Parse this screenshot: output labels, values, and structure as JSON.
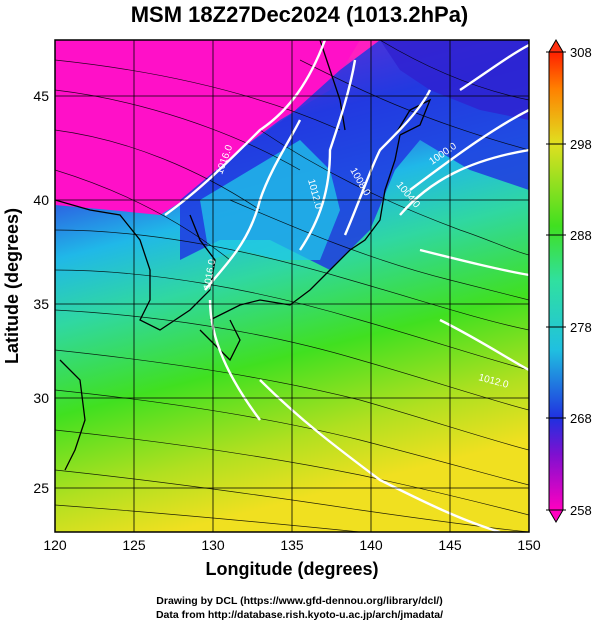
{
  "title": "MSM 18Z27Dec2024 (1013.2hPa)",
  "x_axis": {
    "label": "Longitude (degrees)",
    "ticks": [
      "120",
      "125",
      "130",
      "135",
      "140",
      "145",
      "150"
    ],
    "range": [
      120,
      150
    ]
  },
  "y_axis": {
    "label": "Latitude  (degrees)",
    "ticks": [
      "25",
      "30",
      "35",
      "40",
      "45"
    ],
    "range": [
      22.4,
      47.6
    ]
  },
  "colorbar": {
    "ticks": [
      "258",
      "268",
      "278",
      "288",
      "298",
      "308"
    ],
    "range": [
      258,
      308
    ]
  },
  "contour_labels": [
    "1016.0",
    "1012.0",
    "1008.0",
    "1004.0",
    "1000.0",
    "1012.0",
    "1016.0"
  ],
  "credits": {
    "line1": "Drawing by DCL (https://www.gfd-dennou.org/library/dcl/)",
    "line2": "Data from http://database.rish.kyoto-u.ac.jp/arch/jmadata/"
  },
  "colors": {
    "cold": "#ff00c8",
    "cool": "#2030e0",
    "mid": "#20d0e0",
    "warm": "#40e020",
    "hot": "#e0e020"
  }
}
